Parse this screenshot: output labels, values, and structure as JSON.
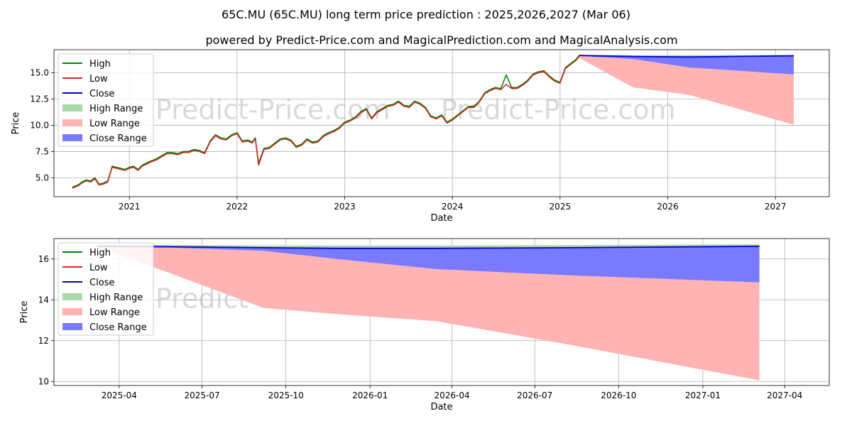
{
  "title": "65C.MU (65C.MU) long term price prediction : 2025,2026,2027 (Mar 06)",
  "subtitle": "powered by Predict-Price.com and MagicalPrediction.com and MagicalAnalysis.com",
  "watermark": "Predict-Price.com",
  "colors": {
    "high": "#008000",
    "low": "#d62728",
    "close": "#0000cc",
    "high_range": "#a9d8a9",
    "low_range": "#ffb3b3",
    "close_range": "#7a7aff",
    "grid": "#b0b0b0",
    "watermark": "#d9d9d9"
  },
  "legend": {
    "items": [
      {
        "label": "High",
        "kind": "line",
        "color_key": "high"
      },
      {
        "label": "Low",
        "kind": "line",
        "color_key": "low"
      },
      {
        "label": "Close",
        "kind": "line",
        "color_key": "close"
      },
      {
        "label": "High Range",
        "kind": "patch",
        "color_key": "high_range"
      },
      {
        "label": "Low Range",
        "kind": "patch",
        "color_key": "low_range"
      },
      {
        "label": "Close Range",
        "kind": "patch",
        "color_key": "close_range"
      }
    ]
  },
  "chart_data": [
    {
      "type": "line",
      "panel": "top",
      "xlabel": "Date",
      "ylabel": "Price",
      "xlim": [
        2020.3,
        2027.5
      ],
      "ylim": [
        3.2,
        17.2
      ],
      "grid": true,
      "legend_position": "top-left",
      "x_ticks": [
        {
          "value": 2021,
          "label": "2021"
        },
        {
          "value": 2022,
          "label": "2022"
        },
        {
          "value": 2023,
          "label": "2023"
        },
        {
          "value": 2024,
          "label": "2024"
        },
        {
          "value": 2025,
          "label": "2025"
        },
        {
          "value": 2026,
          "label": "2026"
        },
        {
          "value": 2027,
          "label": "2027"
        }
      ],
      "y_ticks": [
        {
          "value": 5.0,
          "label": "5.0"
        },
        {
          "value": 7.5,
          "label": "7.5"
        },
        {
          "value": 10.0,
          "label": "10.0"
        },
        {
          "value": 12.5,
          "label": "12.5"
        },
        {
          "value": 15.0,
          "label": "15.0"
        }
      ],
      "history_x": [
        2020.47,
        2020.52,
        2020.56,
        2020.6,
        2020.64,
        2020.68,
        2020.72,
        2020.76,
        2020.8,
        2020.84,
        2020.88,
        2020.92,
        2020.96,
        2021.0,
        2021.04,
        2021.08,
        2021.12,
        2021.16,
        2021.2,
        2021.25,
        2021.3,
        2021.35,
        2021.4,
        2021.45,
        2021.5,
        2021.55,
        2021.6,
        2021.65,
        2021.7,
        2021.75,
        2021.8,
        2021.85,
        2021.9,
        2021.95,
        2022.0,
        2022.05,
        2022.1,
        2022.14,
        2022.17,
        2022.2,
        2022.25,
        2022.3,
        2022.35,
        2022.4,
        2022.45,
        2022.5,
        2022.55,
        2022.6,
        2022.65,
        2022.7,
        2022.75,
        2022.8,
        2022.85,
        2022.9,
        2022.95,
        2023.0,
        2023.05,
        2023.1,
        2023.15,
        2023.2,
        2023.25,
        2023.3,
        2023.35,
        2023.4,
        2023.45,
        2023.5,
        2023.55,
        2023.6,
        2023.65,
        2023.7,
        2023.75,
        2023.8,
        2023.85,
        2023.9,
        2023.95,
        2024.0,
        2024.05,
        2024.1,
        2024.15,
        2024.2,
        2024.25,
        2024.3,
        2024.35,
        2024.4,
        2024.45,
        2024.5,
        2024.55,
        2024.6,
        2024.65,
        2024.7,
        2024.75,
        2024.8,
        2024.85,
        2024.9,
        2024.95,
        2025.0,
        2025.05,
        2025.1,
        2025.15,
        2025.18
      ],
      "history_low": [
        4.0,
        4.2,
        4.5,
        4.7,
        4.6,
        4.9,
        4.3,
        4.4,
        4.6,
        6.0,
        5.9,
        5.8,
        5.7,
        5.9,
        6.0,
        5.7,
        6.1,
        6.3,
        6.5,
        6.7,
        7.0,
        7.3,
        7.3,
        7.2,
        7.4,
        7.4,
        7.6,
        7.5,
        7.3,
        8.4,
        9.0,
        8.7,
        8.6,
        9.0,
        9.2,
        8.4,
        8.5,
        8.3,
        8.7,
        6.2,
        7.7,
        7.8,
        8.2,
        8.6,
        8.7,
        8.5,
        7.9,
        8.1,
        8.6,
        8.3,
        8.4,
        8.9,
        9.2,
        9.4,
        9.7,
        10.2,
        10.4,
        10.7,
        11.2,
        11.5,
        10.6,
        11.2,
        11.5,
        11.8,
        11.9,
        12.2,
        11.8,
        11.7,
        12.2,
        12.0,
        11.6,
        10.8,
        10.6,
        10.9,
        10.2,
        10.5,
        10.9,
        11.3,
        11.7,
        11.7,
        12.2,
        13.0,
        13.3,
        13.5,
        13.4,
        13.9,
        13.5,
        13.5,
        13.8,
        14.2,
        14.8,
        15.0,
        15.1,
        14.6,
        14.2,
        14.0,
        15.4,
        15.8,
        16.2,
        16.6
      ],
      "history_high": [
        4.1,
        4.3,
        4.6,
        4.8,
        4.7,
        5.0,
        4.4,
        4.5,
        4.7,
        6.1,
        6.0,
        5.9,
        5.8,
        6.0,
        6.1,
        5.8,
        6.2,
        6.4,
        6.6,
        6.8,
        7.1,
        7.4,
        7.4,
        7.3,
        7.5,
        7.5,
        7.7,
        7.6,
        7.4,
        8.5,
        9.1,
        8.8,
        8.7,
        9.1,
        9.3,
        8.5,
        8.6,
        8.4,
        8.8,
        6.4,
        7.8,
        7.9,
        8.3,
        8.7,
        8.8,
        8.6,
        8.0,
        8.2,
        8.7,
        8.4,
        8.5,
        9.0,
        9.3,
        9.5,
        9.8,
        10.3,
        10.5,
        10.8,
        11.3,
        11.6,
        10.7,
        11.3,
        11.6,
        11.9,
        12.0,
        12.3,
        11.9,
        11.8,
        12.3,
        12.1,
        11.7,
        10.9,
        10.7,
        11.0,
        10.3,
        10.6,
        11.0,
        11.4,
        11.8,
        11.8,
        12.3,
        13.1,
        13.4,
        13.6,
        13.5,
        14.8,
        13.6,
        13.6,
        13.9,
        14.3,
        14.9,
        15.1,
        15.2,
        14.7,
        14.3,
        14.1,
        15.5,
        15.9,
        16.3,
        16.7
      ],
      "forecast_x": [
        2025.18,
        2025.68,
        2026.2,
        2027.17
      ],
      "forecast_close": [
        16.65,
        16.55,
        16.5,
        16.62
      ],
      "high_range_upper": [
        16.72,
        16.68,
        16.68,
        16.72
      ],
      "high_range_lower": [
        16.6,
        16.5,
        16.45,
        16.55
      ],
      "close_range_upper": [
        16.65,
        16.5,
        16.48,
        16.6
      ],
      "close_range_lower": [
        16.6,
        16.3,
        15.5,
        14.85
      ],
      "low_range_upper": [
        16.6,
        16.3,
        15.5,
        14.85
      ],
      "low_range_lower": [
        16.4,
        13.6,
        12.9,
        10.05
      ]
    },
    {
      "type": "line",
      "panel": "bottom",
      "xlabel": "Date",
      "ylabel": "Price",
      "xlim": [
        2025.05,
        2027.38
      ],
      "ylim": [
        9.8,
        17.0
      ],
      "grid": true,
      "legend_position": "top-left",
      "x_ticks": [
        {
          "value": 2025.246,
          "label": "2025-04"
        },
        {
          "value": 2025.495,
          "label": "2025-07"
        },
        {
          "value": 2025.747,
          "label": "2025-10"
        },
        {
          "value": 2026.0,
          "label": "2026-01"
        },
        {
          "value": 2026.246,
          "label": "2026-04"
        },
        {
          "value": 2026.495,
          "label": "2026-07"
        },
        {
          "value": 2026.747,
          "label": "2026-10"
        },
        {
          "value": 2027.0,
          "label": "2027-01"
        },
        {
          "value": 2027.246,
          "label": "2027-04"
        }
      ],
      "y_ticks": [
        {
          "value": 10,
          "label": "10"
        },
        {
          "value": 12,
          "label": "12"
        },
        {
          "value": 14,
          "label": "14"
        },
        {
          "value": 16,
          "label": "16"
        }
      ],
      "forecast_x": [
        2025.18,
        2025.4,
        2025.68,
        2025.9,
        2026.2,
        2026.6,
        2027.17
      ],
      "forecast_close": [
        16.63,
        16.6,
        16.55,
        16.52,
        16.52,
        16.55,
        16.62
      ],
      "high_range_upper": [
        16.7,
        16.68,
        16.66,
        16.66,
        16.66,
        16.68,
        16.72
      ],
      "high_range_lower": [
        16.63,
        16.6,
        16.55,
        16.52,
        16.52,
        16.55,
        16.62
      ],
      "close_range_upper": [
        16.63,
        16.6,
        16.55,
        16.52,
        16.52,
        16.55,
        16.62
      ],
      "close_range_lower": [
        16.58,
        16.55,
        16.4,
        16.0,
        15.5,
        15.2,
        14.85
      ],
      "low_range_upper": [
        16.58,
        16.55,
        16.4,
        16.0,
        15.5,
        15.2,
        14.85
      ],
      "low_range_lower": [
        16.6,
        15.3,
        13.6,
        13.3,
        12.95,
        11.8,
        10.05
      ]
    }
  ]
}
